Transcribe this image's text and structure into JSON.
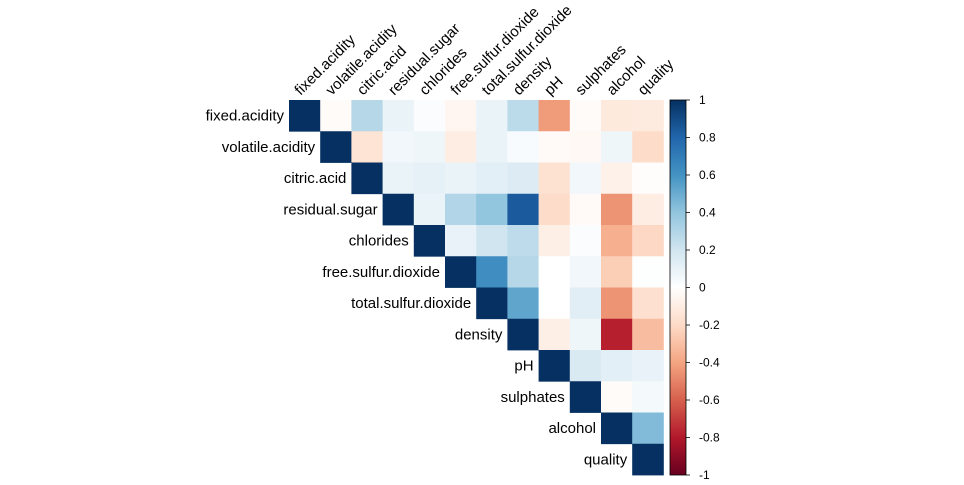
{
  "chart_data": {
    "type": "heatmap",
    "variables": [
      "fixed.acidity",
      "volatile.acidity",
      "citric.acid",
      "residual.sugar",
      "chlorides",
      "free.sulfur.dioxide",
      "total.sulfur.dioxide",
      "density",
      "pH",
      "sulphates",
      "alcohol",
      "quality"
    ],
    "matrix_upper": [
      [
        1.0,
        -0.02,
        0.29,
        0.09,
        0.02,
        -0.05,
        0.09,
        0.27,
        -0.43,
        -0.02,
        -0.12,
        -0.11
      ],
      [
        null,
        1.0,
        -0.15,
        0.06,
        0.07,
        -0.1,
        0.09,
        0.03,
        -0.03,
        -0.04,
        0.07,
        -0.19
      ],
      [
        null,
        null,
        1.0,
        0.09,
        0.11,
        0.09,
        0.12,
        0.15,
        -0.16,
        0.06,
        -0.08,
        -0.01
      ],
      [
        null,
        null,
        null,
        1.0,
        0.09,
        0.3,
        0.4,
        0.84,
        -0.19,
        -0.03,
        -0.45,
        -0.1
      ],
      [
        null,
        null,
        null,
        null,
        1.0,
        0.1,
        0.2,
        0.26,
        -0.09,
        0.02,
        -0.36,
        -0.21
      ],
      [
        null,
        null,
        null,
        null,
        null,
        1.0,
        0.62,
        0.29,
        0.0,
        0.06,
        -0.25,
        0.01
      ],
      [
        null,
        null,
        null,
        null,
        null,
        null,
        1.0,
        0.53,
        0.0,
        0.13,
        -0.45,
        -0.17
      ],
      [
        null,
        null,
        null,
        null,
        null,
        null,
        null,
        1.0,
        -0.09,
        0.07,
        -0.78,
        -0.31
      ],
      [
        null,
        null,
        null,
        null,
        null,
        null,
        null,
        null,
        1.0,
        0.16,
        0.12,
        0.1
      ],
      [
        null,
        null,
        null,
        null,
        null,
        null,
        null,
        null,
        null,
        1.0,
        -0.02,
        0.05
      ],
      [
        null,
        null,
        null,
        null,
        null,
        null,
        null,
        null,
        null,
        null,
        1.0,
        0.44
      ],
      [
        null,
        null,
        null,
        null,
        null,
        null,
        null,
        null,
        null,
        null,
        null,
        1.0
      ]
    ],
    "colorbar": {
      "range": [
        -1,
        1
      ],
      "ticks": [
        "1",
        "0.8",
        "0.6",
        "0.4",
        "0.2",
        "0",
        "-0.2",
        "-0.4",
        "-0.6",
        "-0.8",
        "-1"
      ],
      "colors": [
        "#67001F",
        "#B2182B",
        "#D6604D",
        "#F4A582",
        "#FDDBC7",
        "#FFFFFF",
        "#D1E5F0",
        "#92C5DE",
        "#4393C3",
        "#2166AC",
        "#053061"
      ]
    },
    "title": "",
    "xlabel": "",
    "ylabel": ""
  }
}
